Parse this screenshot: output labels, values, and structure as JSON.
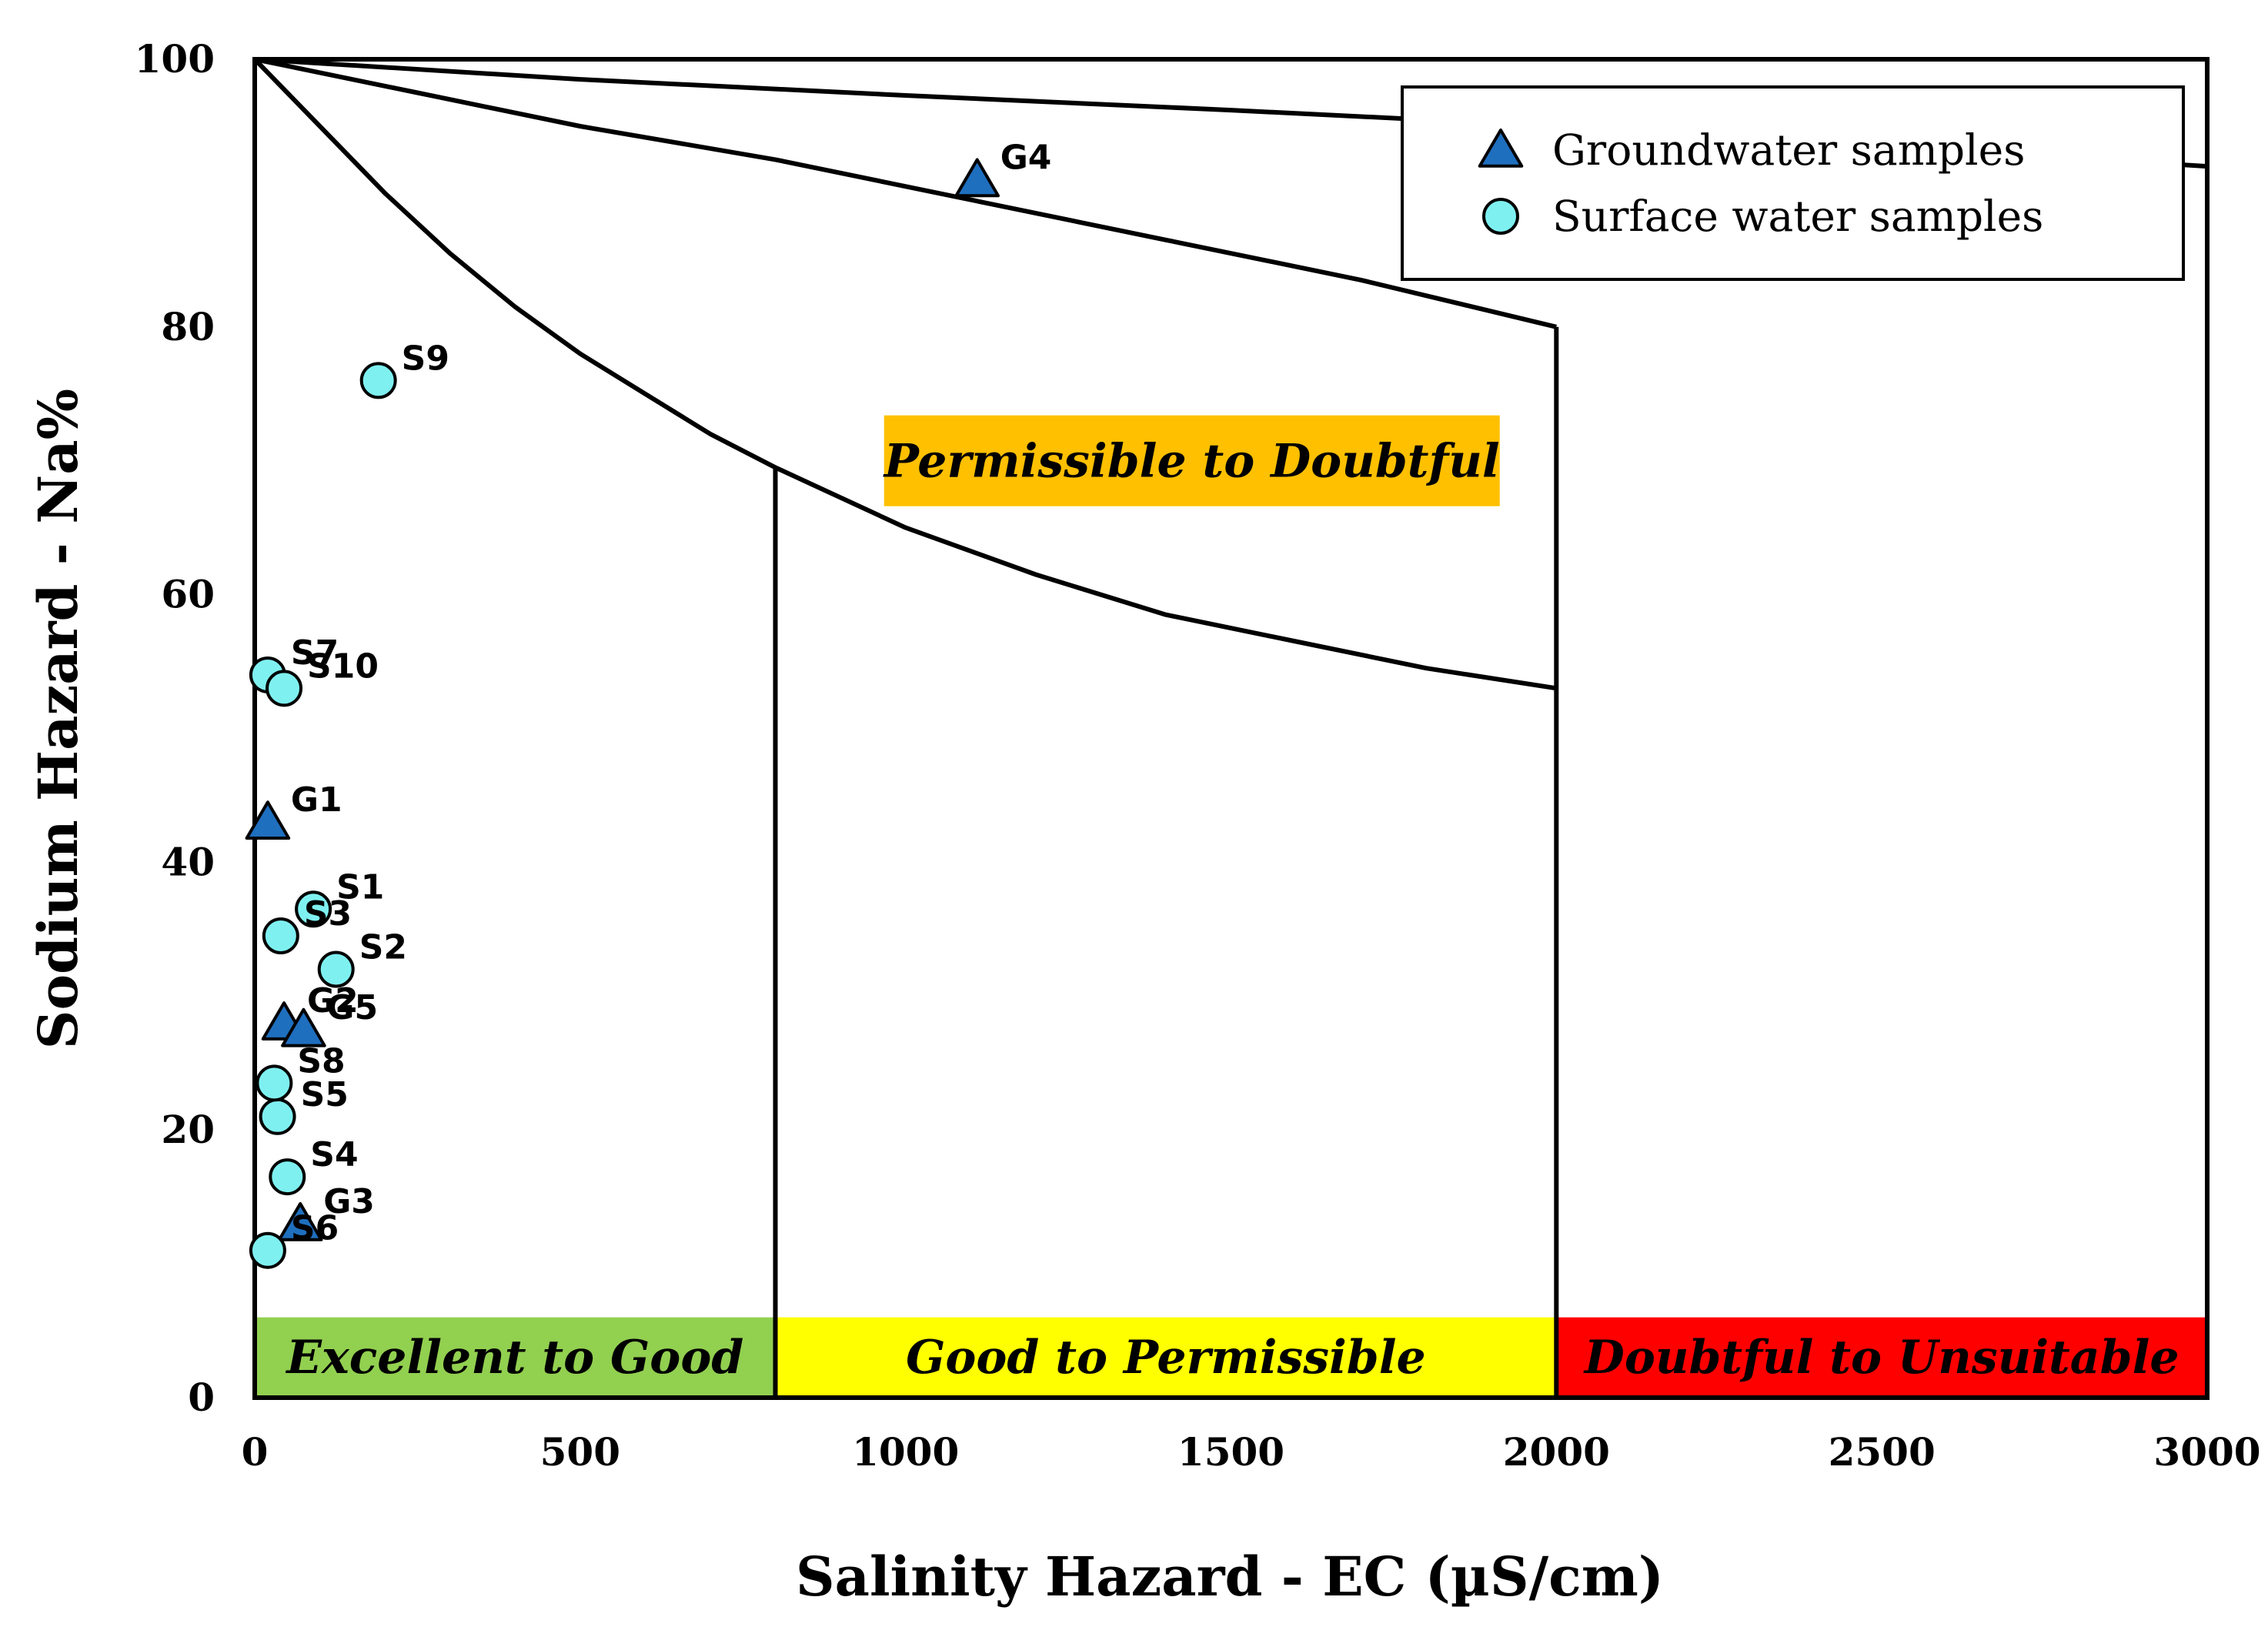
{
  "chart_data": {
    "type": "scatter",
    "xlabel": "Salinity Hazard - EC (µS/cm)",
    "ylabel": "Sodium Hazard - Na%",
    "xlim": [
      0,
      3000
    ],
    "ylim": [
      0,
      100
    ],
    "x_ticks": [
      {
        "value": 0,
        "label": "0"
      },
      {
        "value": 500,
        "label": "500"
      },
      {
        "value": 1000,
        "label": "1000"
      },
      {
        "value": 1500,
        "label": "1500"
      },
      {
        "value": 2000,
        "label": "2000"
      },
      {
        "value": 2500,
        "label": "2500"
      },
      {
        "value": 3000,
        "label": "3000"
      }
    ],
    "y_ticks": [
      {
        "value": 0,
        "label": "0"
      },
      {
        "value": 20,
        "label": "20"
      },
      {
        "value": 40,
        "label": "40"
      },
      {
        "value": 60,
        "label": "60"
      },
      {
        "value": 80,
        "label": "80"
      },
      {
        "value": 100,
        "label": "100"
      }
    ],
    "grid": false,
    "legend": {
      "position": "top-right",
      "entries": [
        {
          "name": "Groundwater samples",
          "marker": "triangle",
          "color": "#1f6fbf"
        },
        {
          "name": "Surface water samples",
          "marker": "circle",
          "color": "#7ff0f0"
        }
      ]
    },
    "series": [
      {
        "name": "Groundwater samples",
        "marker": "triangle",
        "points": [
          {
            "label": "G1",
            "x": 20,
            "y": 43
          },
          {
            "label": "G2",
            "x": 45,
            "y": 28
          },
          {
            "label": "G3",
            "x": 70,
            "y": 13
          },
          {
            "label": "G4",
            "x": 1110,
            "y": 91
          },
          {
            "label": "G5",
            "x": 75,
            "y": 27.5
          }
        ]
      },
      {
        "name": "Surface water samples",
        "marker": "circle",
        "points": [
          {
            "label": "S1",
            "x": 90,
            "y": 36.5
          },
          {
            "label": "S2",
            "x": 125,
            "y": 32
          },
          {
            "label": "S3",
            "x": 40,
            "y": 34.5
          },
          {
            "label": "S4",
            "x": 50,
            "y": 16.5
          },
          {
            "label": "S5",
            "x": 35,
            "y": 21
          },
          {
            "label": "S6",
            "x": 20,
            "y": 11
          },
          {
            "label": "S7",
            "x": 20,
            "y": 54
          },
          {
            "label": "S8",
            "x": 30,
            "y": 23.5
          },
          {
            "label": "S9",
            "x": 190,
            "y": 76
          },
          {
            "label": "S10",
            "x": 45,
            "y": 53
          }
        ]
      }
    ],
    "boundaries": [
      {
        "name": "upper-curve",
        "points": [
          [
            0,
            100
          ],
          [
            500,
            98.5
          ],
          [
            1000,
            97.3
          ],
          [
            1500,
            96.2
          ],
          [
            2000,
            95
          ],
          [
            2500,
            93.5
          ],
          [
            3000,
            92
          ]
        ]
      },
      {
        "name": "middle-curve",
        "points": [
          [
            0,
            100
          ],
          [
            250,
            97.5
          ],
          [
            500,
            95
          ],
          [
            800,
            92.5
          ],
          [
            1100,
            89.5
          ],
          [
            1400,
            86.5
          ],
          [
            1700,
            83.5
          ],
          [
            2000,
            80
          ]
        ]
      },
      {
        "name": "lower-curve",
        "points": [
          [
            0,
            100
          ],
          [
            100,
            95
          ],
          [
            200,
            90
          ],
          [
            300,
            85.5
          ],
          [
            400,
            81.5
          ],
          [
            500,
            78
          ],
          [
            600,
            75
          ],
          [
            700,
            72
          ],
          [
            800,
            69.5
          ],
          [
            1000,
            65
          ],
          [
            1200,
            61.5
          ],
          [
            1400,
            58.5
          ],
          [
            1600,
            56.5
          ],
          [
            1800,
            54.5
          ],
          [
            2000,
            53
          ]
        ]
      },
      {
        "name": "divider-800",
        "points": [
          [
            800,
            0
          ],
          [
            800,
            69.5
          ]
        ]
      },
      {
        "name": "divider-2000",
        "points": [
          [
            2000,
            0
          ],
          [
            2000,
            80
          ]
        ]
      }
    ],
    "zones": [
      {
        "label": "Excellent to Good",
        "x0": 0,
        "x1": 800,
        "y0": 0,
        "y1": 6,
        "color": "#92d050"
      },
      {
        "label": "Good to Permissible",
        "x0": 800,
        "x1": 2000,
        "y0": 0,
        "y1": 6,
        "color": "#ffff00"
      },
      {
        "label": "Doubtful to Unsuitable",
        "x0": 2000,
        "x1": 3000,
        "y0": 0,
        "y1": 6,
        "color": "#ff0000"
      },
      {
        "label": "Permissible to Doubtful",
        "x": 1440,
        "y": 70,
        "color": "#ffc000"
      }
    ]
  }
}
